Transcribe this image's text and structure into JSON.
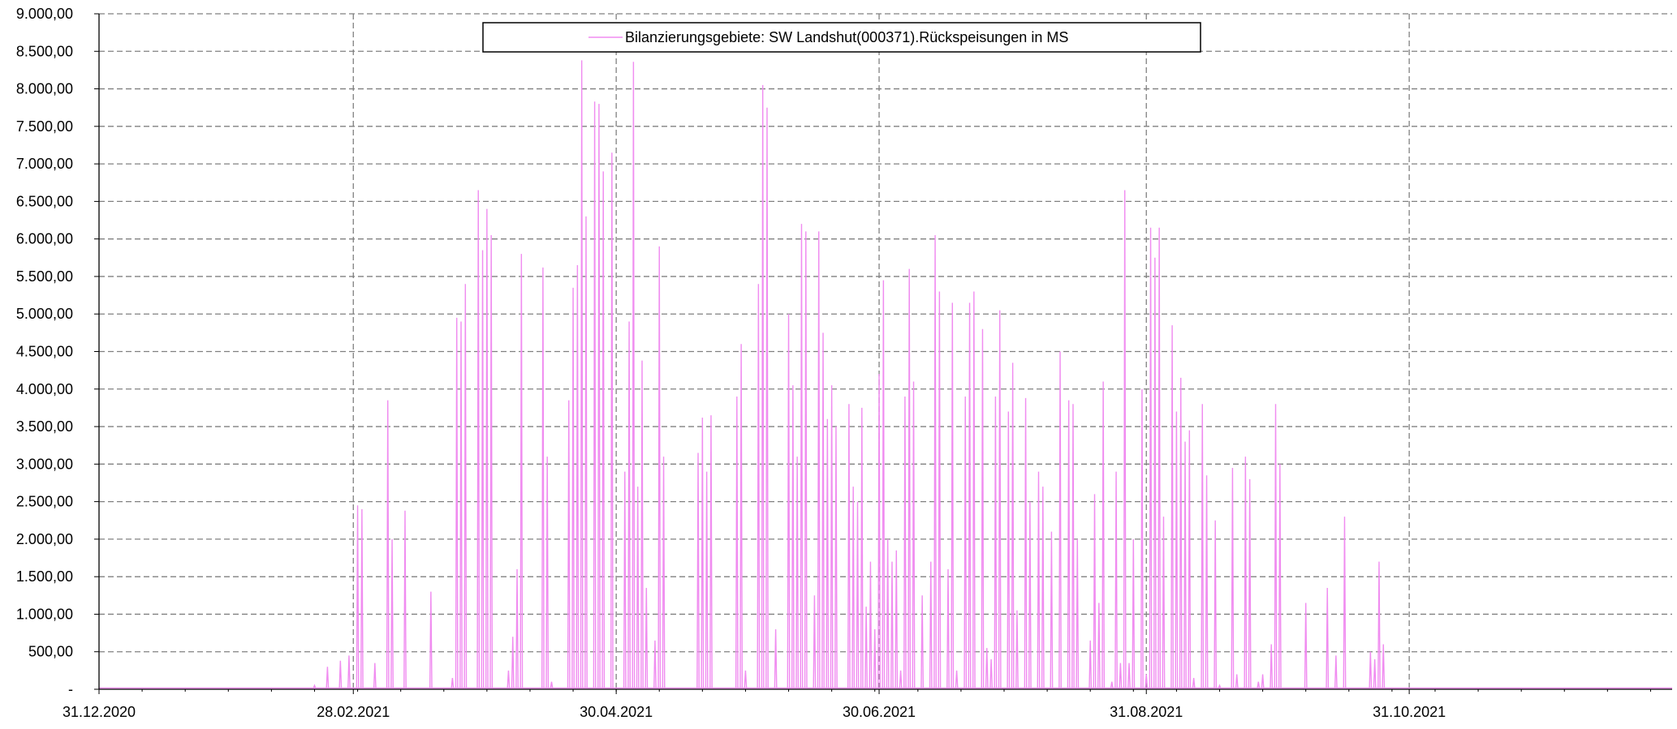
{
  "chart_data": {
    "type": "line",
    "title": "",
    "xlabel": "",
    "ylabel": "",
    "ylim": [
      0,
      9000
    ],
    "xlim": [
      "2020-12-31",
      "2021-12-31"
    ],
    "y_ticks": [
      0,
      500,
      1000,
      1500,
      2000,
      2500,
      3000,
      3500,
      4000,
      4500,
      5000,
      5500,
      6000,
      6500,
      7000,
      7500,
      8000,
      8500,
      9000
    ],
    "y_tick_labels": [
      "-",
      "500,00",
      "1.000,00",
      "1.500,00",
      "2.000,00",
      "2.500,00",
      "3.000,00",
      "3.500,00",
      "4.000,00",
      "4.500,00",
      "5.000,00",
      "5.500,00",
      "6.000,00",
      "6.500,00",
      "7.000,00",
      "7.500,00",
      "8.000,00",
      "8.500,00",
      "9.000,00"
    ],
    "x_ticks": [
      "2020-12-31",
      "2021-02-28",
      "2021-04-30",
      "2021-06-30",
      "2021-08-31",
      "2021-10-31"
    ],
    "x_tick_labels": [
      "31.12.2020",
      "28.02.2021",
      "30.04.2021",
      "30.06.2021",
      "31.08.2021",
      "31.10.2021"
    ],
    "grid": true,
    "legend_position": "top-center",
    "series": [
      {
        "name": "Bilanzierungsgebiete: SW Landshut(000371).Rückspeisungen in MS",
        "color": "#f08cf0",
        "points": [
          [
            "2021-02-19",
            50
          ],
          [
            "2021-02-22",
            300
          ],
          [
            "2021-02-25",
            380
          ],
          [
            "2021-02-27",
            450
          ],
          [
            "2021-03-01",
            2450
          ],
          [
            "2021-03-02",
            2400
          ],
          [
            "2021-03-05",
            350
          ],
          [
            "2021-03-08",
            3850
          ],
          [
            "2021-03-09",
            2000
          ],
          [
            "2021-03-12",
            2380
          ],
          [
            "2021-03-18",
            1300
          ],
          [
            "2021-03-23",
            150
          ],
          [
            "2021-03-24",
            4950
          ],
          [
            "2021-03-25",
            4900
          ],
          [
            "2021-03-26",
            5400
          ],
          [
            "2021-03-29",
            6650
          ],
          [
            "2021-03-30",
            5850
          ],
          [
            "2021-03-31",
            6400
          ],
          [
            "2021-04-01",
            6050
          ],
          [
            "2021-04-05",
            250
          ],
          [
            "2021-04-06",
            700
          ],
          [
            "2021-04-07",
            1600
          ],
          [
            "2021-04-08",
            5800
          ],
          [
            "2021-04-13",
            5620
          ],
          [
            "2021-04-14",
            3100
          ],
          [
            "2021-04-15",
            100
          ],
          [
            "2021-04-19",
            3850
          ],
          [
            "2021-04-20",
            5350
          ],
          [
            "2021-04-21",
            5650
          ],
          [
            "2021-04-22",
            8380
          ],
          [
            "2021-04-23",
            6300
          ],
          [
            "2021-04-25",
            7830
          ],
          [
            "2021-04-26",
            7800
          ],
          [
            "2021-04-27",
            6900
          ],
          [
            "2021-04-29",
            7150
          ],
          [
            "2021-05-02",
            2900
          ],
          [
            "2021-05-03",
            4900
          ],
          [
            "2021-05-04",
            8360
          ],
          [
            "2021-05-05",
            2700
          ],
          [
            "2021-05-06",
            4380
          ],
          [
            "2021-05-07",
            1350
          ],
          [
            "2021-05-09",
            650
          ],
          [
            "2021-05-10",
            5900
          ],
          [
            "2021-05-11",
            3100
          ],
          [
            "2021-05-19",
            3150
          ],
          [
            "2021-05-20",
            3620
          ],
          [
            "2021-05-21",
            2900
          ],
          [
            "2021-05-22",
            3650
          ],
          [
            "2021-05-28",
            3900
          ],
          [
            "2021-05-29",
            4600
          ],
          [
            "2021-05-30",
            250
          ],
          [
            "2021-06-02",
            5400
          ],
          [
            "2021-06-03",
            8050
          ],
          [
            "2021-06-04",
            7750
          ],
          [
            "2021-06-06",
            800
          ],
          [
            "2021-06-09",
            5000
          ],
          [
            "2021-06-10",
            4050
          ],
          [
            "2021-06-11",
            3100
          ],
          [
            "2021-06-12",
            6200
          ],
          [
            "2021-06-13",
            6100
          ],
          [
            "2021-06-15",
            1250
          ],
          [
            "2021-06-16",
            6100
          ],
          [
            "2021-06-17",
            4750
          ],
          [
            "2021-06-18",
            3600
          ],
          [
            "2021-06-19",
            4050
          ],
          [
            "2021-06-20",
            3500
          ],
          [
            "2021-06-23",
            3800
          ],
          [
            "2021-06-24",
            2700
          ],
          [
            "2021-06-25",
            2500
          ],
          [
            "2021-06-26",
            3750
          ],
          [
            "2021-06-27",
            1100
          ],
          [
            "2021-06-28",
            1700
          ],
          [
            "2021-06-29",
            800
          ],
          [
            "2021-06-30",
            4200
          ],
          [
            "2021-07-01",
            5450
          ],
          [
            "2021-07-02",
            2000
          ],
          [
            "2021-07-03",
            1700
          ],
          [
            "2021-07-04",
            1850
          ],
          [
            "2021-07-05",
            250
          ],
          [
            "2021-07-06",
            3900
          ],
          [
            "2021-07-07",
            5600
          ],
          [
            "2021-07-08",
            4100
          ],
          [
            "2021-07-10",
            1250
          ],
          [
            "2021-07-12",
            1700
          ],
          [
            "2021-07-13",
            6050
          ],
          [
            "2021-07-14",
            5300
          ],
          [
            "2021-07-16",
            1600
          ],
          [
            "2021-07-17",
            5150
          ],
          [
            "2021-07-18",
            250
          ],
          [
            "2021-07-20",
            3900
          ],
          [
            "2021-07-21",
            5150
          ],
          [
            "2021-07-22",
            5300
          ],
          [
            "2021-07-24",
            4800
          ],
          [
            "2021-07-25",
            550
          ],
          [
            "2021-07-26",
            400
          ],
          [
            "2021-07-27",
            3900
          ],
          [
            "2021-07-28",
            5050
          ],
          [
            "2021-07-30",
            3700
          ],
          [
            "2021-07-31",
            4350
          ],
          [
            "2021-08-01",
            1050
          ],
          [
            "2021-08-03",
            3880
          ],
          [
            "2021-08-04",
            2500
          ],
          [
            "2021-08-06",
            2900
          ],
          [
            "2021-08-07",
            2700
          ],
          [
            "2021-08-09",
            2100
          ],
          [
            "2021-08-11",
            4500
          ],
          [
            "2021-08-13",
            3850
          ],
          [
            "2021-08-14",
            3800
          ],
          [
            "2021-08-15",
            2000
          ],
          [
            "2021-08-18",
            650
          ],
          [
            "2021-08-19",
            2600
          ],
          [
            "2021-08-20",
            1150
          ],
          [
            "2021-08-21",
            4100
          ],
          [
            "2021-08-23",
            100
          ],
          [
            "2021-08-24",
            2900
          ],
          [
            "2021-08-25",
            350
          ],
          [
            "2021-08-26",
            6650
          ],
          [
            "2021-08-27",
            350
          ],
          [
            "2021-08-28",
            2000
          ],
          [
            "2021-08-30",
            4000
          ],
          [
            "2021-08-31",
            200
          ],
          [
            "2021-09-01",
            6150
          ],
          [
            "2021-09-02",
            5750
          ],
          [
            "2021-09-03",
            6150
          ],
          [
            "2021-09-04",
            2300
          ],
          [
            "2021-09-06",
            4850
          ],
          [
            "2021-09-07",
            3700
          ],
          [
            "2021-09-08",
            4150
          ],
          [
            "2021-09-09",
            3300
          ],
          [
            "2021-09-10",
            3450
          ],
          [
            "2021-09-11",
            150
          ],
          [
            "2021-09-13",
            3800
          ],
          [
            "2021-09-14",
            2850
          ],
          [
            "2021-09-16",
            2250
          ],
          [
            "2021-09-17",
            50
          ],
          [
            "2021-09-20",
            2950
          ],
          [
            "2021-09-21",
            200
          ],
          [
            "2021-09-23",
            3100
          ],
          [
            "2021-09-24",
            2800
          ],
          [
            "2021-09-26",
            100
          ],
          [
            "2021-09-27",
            200
          ],
          [
            "2021-09-29",
            600
          ],
          [
            "2021-09-30",
            3800
          ],
          [
            "2021-10-01",
            3000
          ],
          [
            "2021-10-07",
            1150
          ],
          [
            "2021-10-12",
            1350
          ],
          [
            "2021-10-14",
            450
          ],
          [
            "2021-10-16",
            2300
          ],
          [
            "2021-10-22",
            500
          ],
          [
            "2021-10-23",
            400
          ],
          [
            "2021-10-24",
            1700
          ],
          [
            "2021-10-25",
            600
          ]
        ]
      }
    ]
  }
}
